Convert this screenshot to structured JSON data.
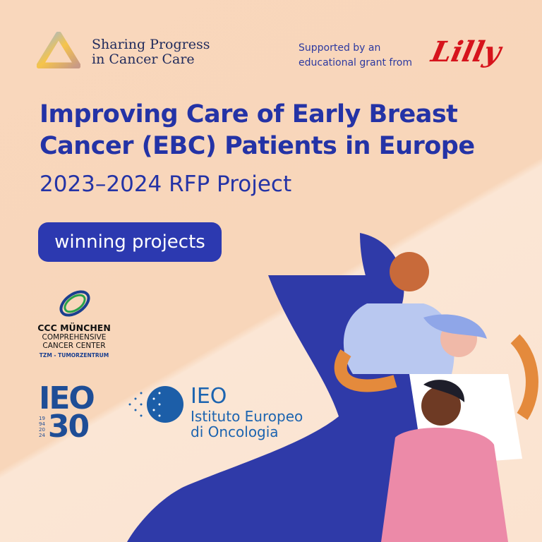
{
  "header": {
    "brand_line1": "Sharing Progress",
    "brand_line2": "in Cancer Care",
    "support_line1": "Supported by an",
    "support_line2": "educational grant from",
    "sponsor_logo": "Lilly"
  },
  "main": {
    "title_line1": "Improving Care of Early Breast",
    "title_line2": "Cancer (EBC) Patients in Europe",
    "subtitle": "2023–2024 RFP Project",
    "badge": "winning projects"
  },
  "partners": {
    "ccc": {
      "line1": "CCC MÜNCHEN",
      "line2": "COMPREHENSIVE",
      "line3": "CANCER CENTER",
      "line4": "TZM - TUMORZENTRUM"
    },
    "ieo30": {
      "top": "IEO",
      "bottom": "30",
      "years": [
        "19",
        "94",
        "20",
        "24"
      ]
    },
    "ieo": {
      "abbr": "IEO",
      "line1": "Istituto Europeo",
      "line2": "di Oncologia"
    }
  },
  "colors": {
    "primary": "#2433a6",
    "background": "#f9d7bc",
    "sponsor": "#d6141c"
  }
}
